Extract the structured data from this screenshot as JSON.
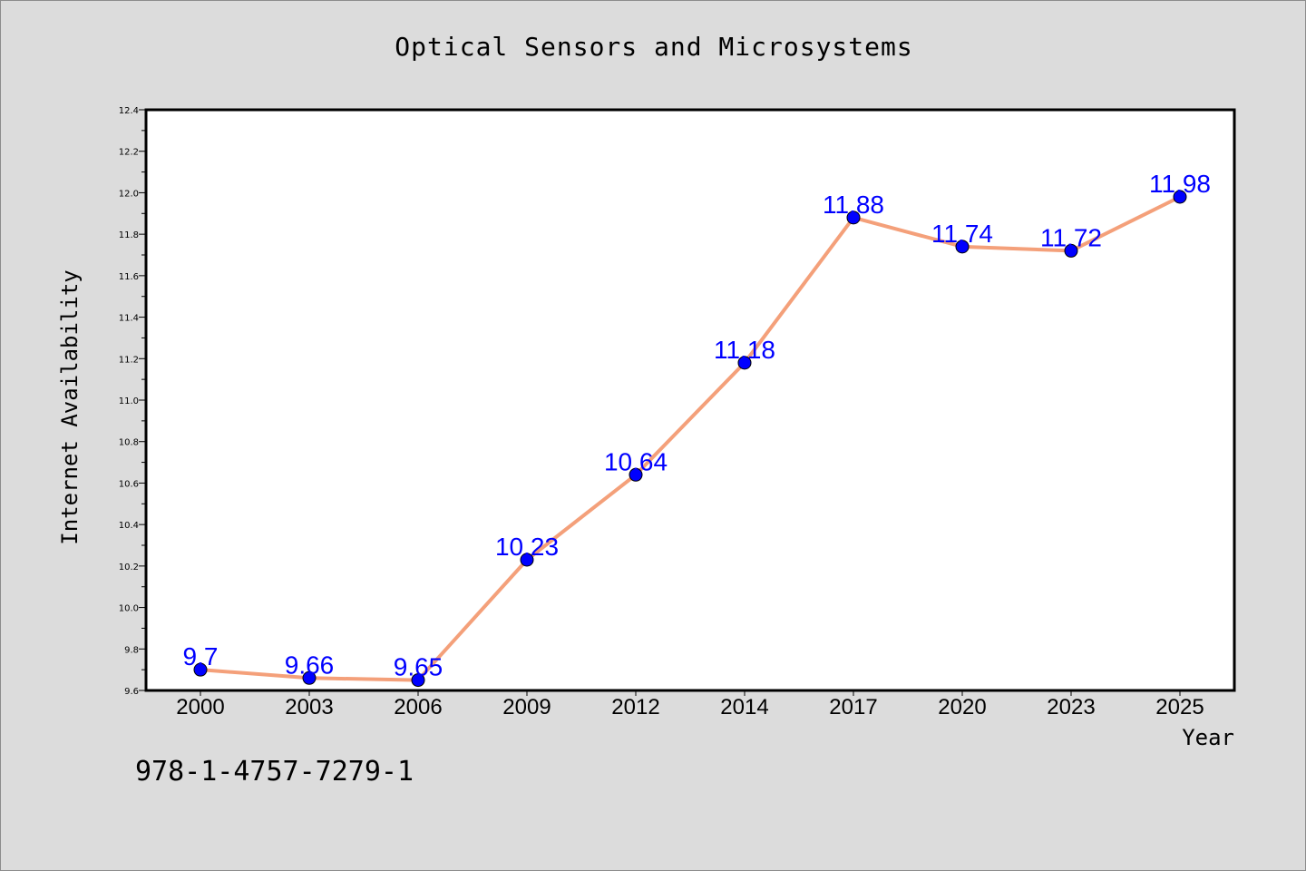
{
  "chart_data": {
    "type": "line",
    "title": "Optical Sensors and Microsystems",
    "xlabel": "Year",
    "ylabel": "Internet Availability",
    "categories": [
      "2000",
      "2003",
      "2006",
      "2009",
      "2012",
      "2014",
      "2017",
      "2020",
      "2023",
      "2025"
    ],
    "series": [
      {
        "values": [
          9.7,
          9.66,
          9.65,
          10.23,
          10.64,
          11.18,
          11.88,
          11.74,
          11.72,
          11.98
        ],
        "data_labels": [
          "9.7",
          "9.66",
          "9.65",
          "10.23",
          "10.64",
          "11.18",
          "11.88",
          "11.74",
          "11.72",
          "11.98"
        ]
      }
    ],
    "ylim": [
      9.6,
      12.4
    ],
    "y_ticks": [
      "9.6",
      "9.8",
      "10.0",
      "10.2",
      "10.4",
      "10.6",
      "10.8",
      "11.0",
      "11.2",
      "11.4",
      "11.6",
      "11.8",
      "12.0",
      "12.2",
      "12.4"
    ],
    "grid": false,
    "legend": "none",
    "colors": {
      "line": "#f4a07a",
      "marker": "#0000ff",
      "data_label": "#0000ff",
      "background": "#dcdcdc",
      "plot_background": "#ffffff"
    }
  },
  "footer": {
    "isbn": "978-1-4757-7279-1"
  }
}
